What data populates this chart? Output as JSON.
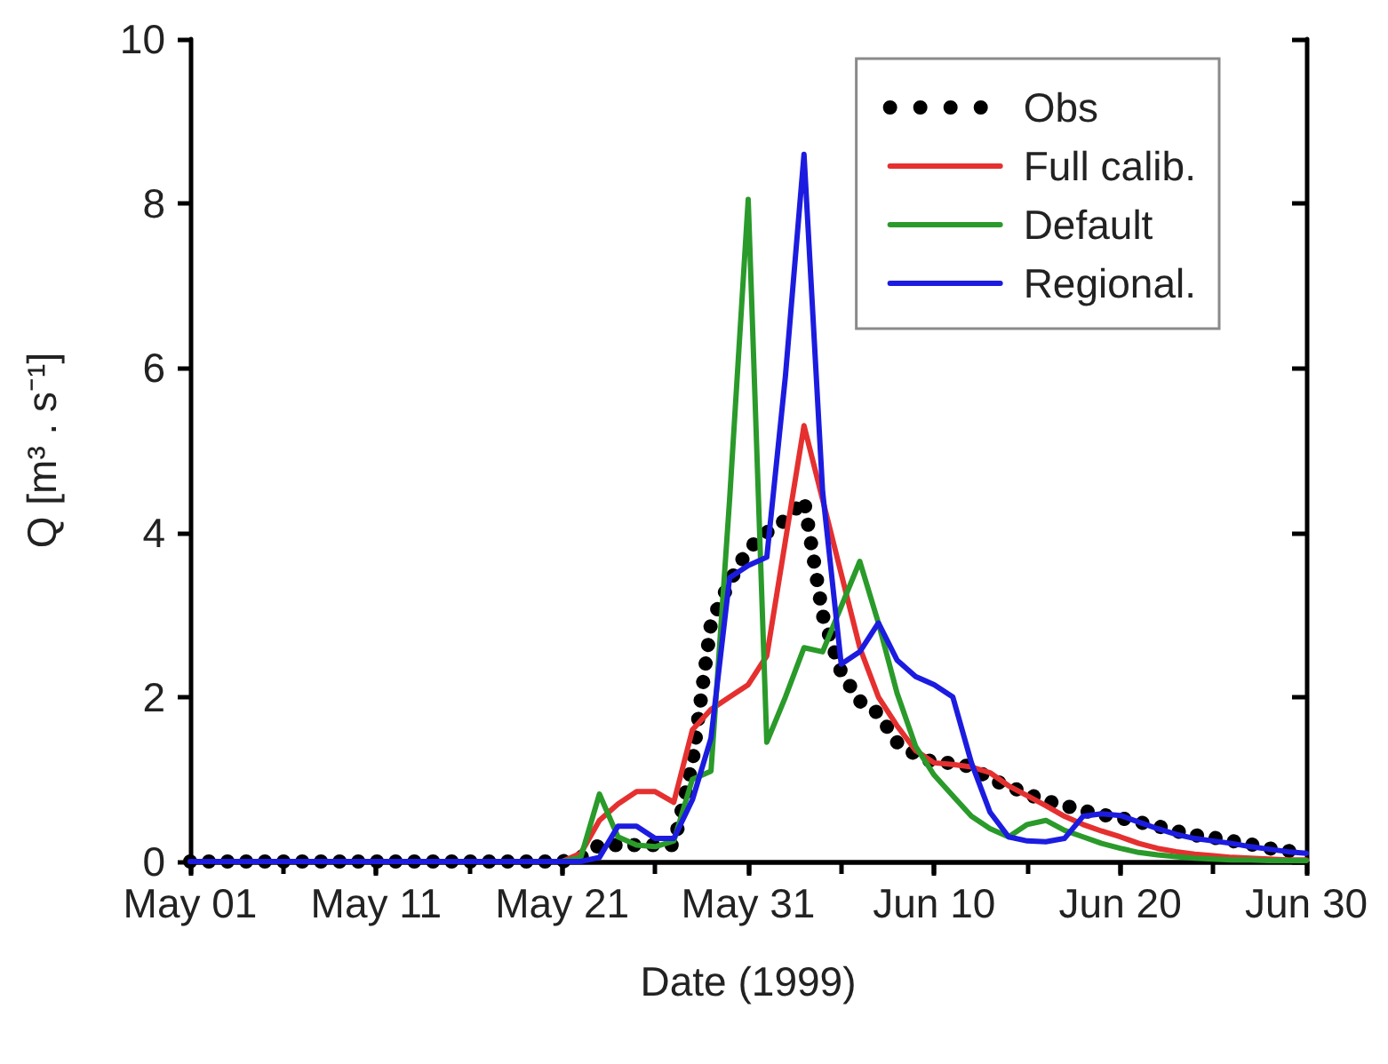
{
  "chart_data": {
    "type": "line",
    "xlabel": "Date (1999)",
    "ylabel": "Q [m³ . s⁻¹]",
    "legend": "top right",
    "line_style": "solid",
    "x": [
      "1999-05-01",
      "1999-05-02",
      "1999-05-03",
      "1999-05-04",
      "1999-05-05",
      "1999-05-06",
      "1999-05-07",
      "1999-05-08",
      "1999-05-09",
      "1999-05-10",
      "1999-05-11",
      "1999-05-12",
      "1999-05-13",
      "1999-05-14",
      "1999-05-15",
      "1999-05-16",
      "1999-05-17",
      "1999-05-18",
      "1999-05-19",
      "1999-05-20",
      "1999-05-21",
      "1999-05-22",
      "1999-05-23",
      "1999-05-24",
      "1999-05-25",
      "1999-05-26",
      "1999-05-27",
      "1999-05-28",
      "1999-05-29",
      "1999-05-30",
      "1999-05-31",
      "1999-06-01",
      "1999-06-02",
      "1999-06-03",
      "1999-06-04",
      "1999-06-05",
      "1999-06-06",
      "1999-06-07",
      "1999-06-08",
      "1999-06-09",
      "1999-06-10",
      "1999-06-11",
      "1999-06-12",
      "1999-06-13",
      "1999-06-14",
      "1999-06-15",
      "1999-06-16",
      "1999-06-17",
      "1999-06-18",
      "1999-06-19",
      "1999-06-20",
      "1999-06-21",
      "1999-06-22",
      "1999-06-23",
      "1999-06-24",
      "1999-06-25",
      "1999-06-26",
      "1999-06-27",
      "1999-06-28",
      "1999-06-29",
      "1999-06-30"
    ],
    "series": [
      {
        "name": "Obs",
        "color": "#000000",
        "line_style": "dotted",
        "values": [
          0,
          0,
          0,
          0,
          0,
          0,
          0,
          0,
          0,
          0,
          0,
          0,
          0,
          0,
          0,
          0,
          0,
          0,
          0,
          0,
          0,
          0.05,
          0.2,
          0.2,
          0.2,
          0.2,
          0.2,
          1.2,
          2.9,
          3.4,
          3.8,
          4.0,
          4.15,
          4.4,
          3.0,
          2.3,
          1.95,
          1.8,
          1.45,
          1.3,
          1.2,
          1.2,
          1.15,
          1.0,
          0.92,
          0.82,
          0.74,
          0.68,
          0.62,
          0.57,
          0.53,
          0.48,
          0.43,
          0.37,
          0.32,
          0.29,
          0.25,
          0.21,
          0.16,
          0.13,
          0.1
        ]
      },
      {
        "name": "Full calib.",
        "color": "#e53030",
        "values": [
          null,
          null,
          null,
          null,
          null,
          null,
          null,
          null,
          null,
          null,
          null,
          null,
          null,
          null,
          null,
          null,
          null,
          null,
          null,
          0,
          0,
          0.1,
          0.5,
          0.7,
          0.85,
          0.85,
          0.72,
          1.6,
          1.85,
          2.0,
          2.15,
          2.5,
          3.9,
          5.3,
          4.4,
          3.5,
          2.6,
          2.0,
          1.65,
          1.35,
          1.2,
          1.18,
          1.15,
          1.08,
          0.92,
          0.8,
          0.68,
          0.55,
          0.45,
          0.37,
          0.3,
          0.22,
          0.16,
          0.12,
          0.09,
          0.07,
          0.05,
          0.04,
          0.03,
          0.02,
          0.02
        ]
      },
      {
        "name": "Default",
        "color": "#2a9a2a",
        "values": [
          null,
          null,
          null,
          null,
          null,
          null,
          null,
          null,
          null,
          null,
          null,
          null,
          null,
          null,
          null,
          null,
          null,
          null,
          null,
          0,
          0,
          0.05,
          0.82,
          0.3,
          0.2,
          0.18,
          0.25,
          1.0,
          1.1,
          4.4,
          8.05,
          1.45,
          2.0,
          2.6,
          2.55,
          3.1,
          3.65,
          2.9,
          2.05,
          1.4,
          1.05,
          0.8,
          0.55,
          0.4,
          0.3,
          0.45,
          0.5,
          0.38,
          0.3,
          0.22,
          0.16,
          0.11,
          0.08,
          0.06,
          0.04,
          0.03,
          0.02,
          0.02,
          0.01,
          0.01,
          0.01
        ]
      },
      {
        "name": "Regional.",
        "color": "#1c1ce0",
        "values": [
          0,
          0,
          0,
          0,
          0,
          0,
          0,
          0,
          0,
          0,
          0,
          0,
          0,
          0,
          0,
          0,
          0,
          0,
          0,
          0,
          0,
          0,
          0.05,
          0.43,
          0.43,
          0.28,
          0.28,
          0.75,
          1.5,
          3.45,
          3.6,
          3.7,
          5.9,
          8.6,
          4.5,
          2.4,
          2.55,
          2.9,
          2.45,
          2.25,
          2.15,
          2.0,
          1.2,
          0.6,
          0.3,
          0.25,
          0.24,
          0.28,
          0.55,
          0.58,
          0.56,
          0.48,
          0.4,
          0.33,
          0.28,
          0.25,
          0.22,
          0.18,
          0.15,
          0.12,
          0.1
        ]
      }
    ],
    "xlim": [
      "1999-05-01",
      "1999-06-30"
    ],
    "xticks": [
      {
        "value": "1999-05-01",
        "label": "May 01"
      },
      {
        "value": "1999-05-06",
        "label": null
      },
      {
        "value": "1999-05-11",
        "label": "May 11"
      },
      {
        "value": "1999-05-16",
        "label": null
      },
      {
        "value": "1999-05-21",
        "label": "May 21"
      },
      {
        "value": "1999-05-26",
        "label": null
      },
      {
        "value": "1999-05-31",
        "label": "May 31"
      },
      {
        "value": "1999-06-05",
        "label": null
      },
      {
        "value": "1999-06-10",
        "label": "Jun 10"
      },
      {
        "value": "1999-06-15",
        "label": null
      },
      {
        "value": "1999-06-20",
        "label": "Jun 20"
      },
      {
        "value": "1999-06-25",
        "label": null
      },
      {
        "value": "1999-06-30",
        "label": "Jun 30"
      }
    ],
    "ylim": [
      0,
      10
    ],
    "yticks": [
      0,
      2,
      4,
      6,
      8,
      10
    ]
  }
}
